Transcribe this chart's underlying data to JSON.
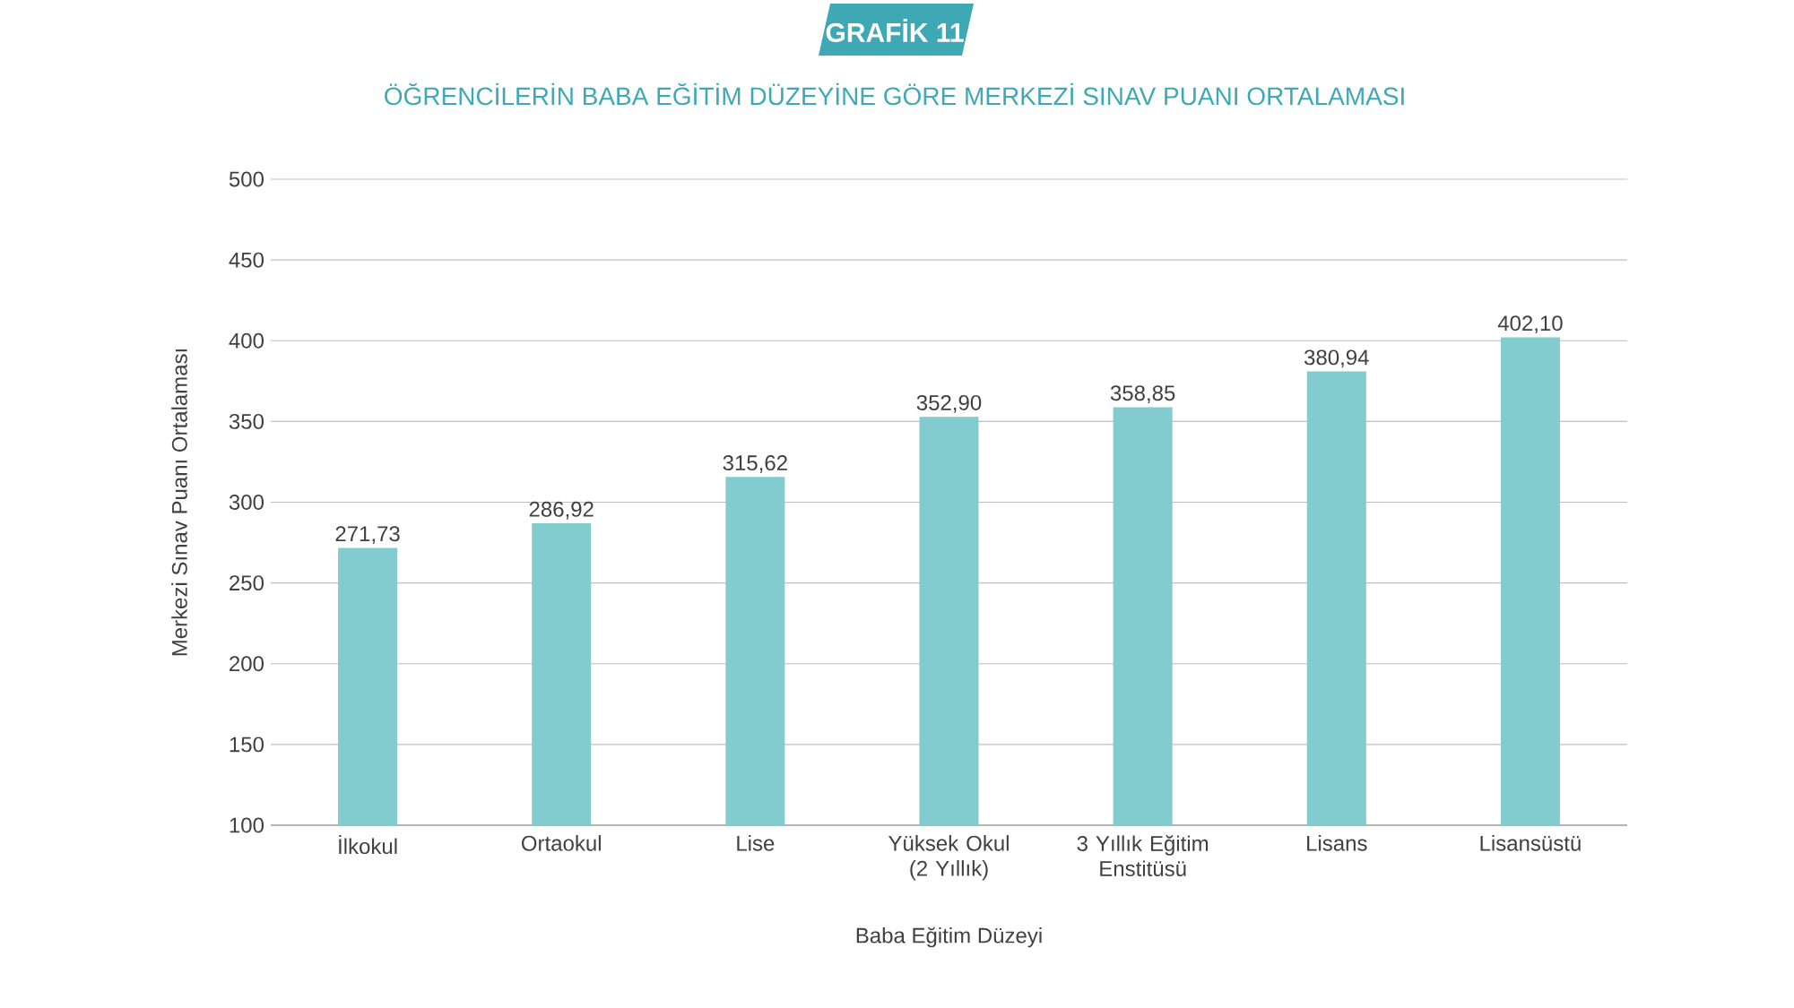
{
  "chart_data": {
    "type": "bar",
    "title": "GRAFİK 11",
    "subtitle": "ÖĞRENCİLERİN BABA EĞİTİM DÜZEYİNE GÖRE MERKEZİ SINAV PUANI ORTALAMASI",
    "xlabel": "Baba Eğitim Düzeyi",
    "ylabel": "Merkezi Sınav Puanı Ortalaması",
    "categories": [
      "İlkokul",
      "Ortaokul",
      "Lise",
      "Yüksek Okul (2 Yıllık)",
      "3 Yıllık Eğitim Enstitüsü",
      "Lisans",
      "Lisansüstü"
    ],
    "values": [
      271.73,
      286.92,
      315.62,
      352.9,
      358.85,
      380.94,
      402.1
    ],
    "value_labels": [
      "271,73",
      "286,92",
      "315,62",
      "352,90",
      "358,85",
      "380,94",
      "402,10"
    ],
    "color": "#82cbcf",
    "ylim": [
      100,
      500
    ],
    "yticks": [
      100,
      150,
      200,
      250,
      300,
      350,
      400,
      450,
      500
    ],
    "grid": "y"
  }
}
